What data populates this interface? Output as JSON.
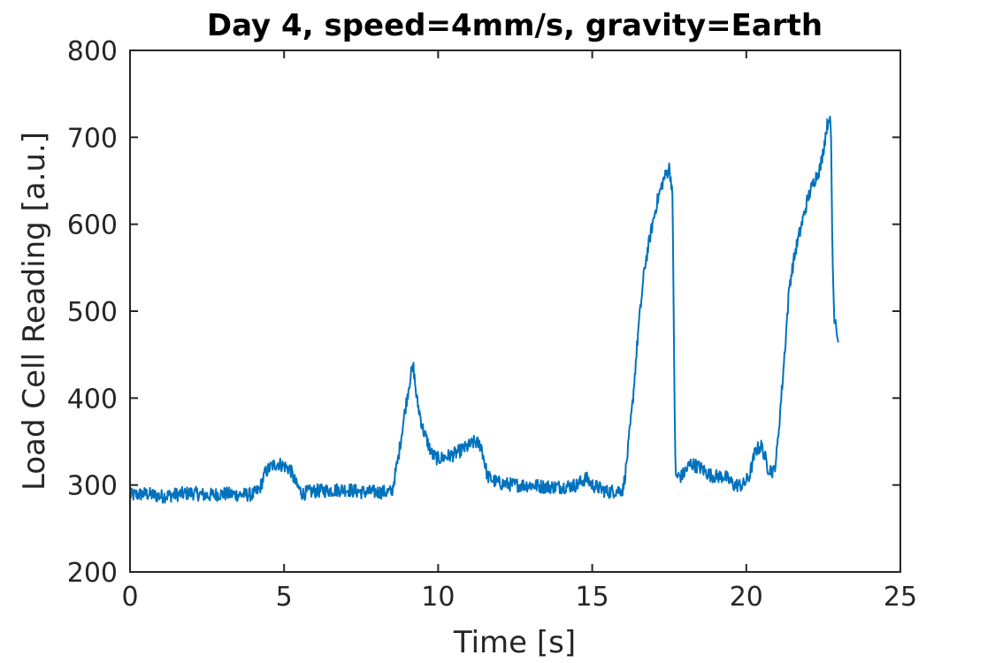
{
  "chart_data": {
    "type": "line",
    "title": "Day 4, speed=4mm/s, gravity=Earth",
    "xlabel": "Time [s]",
    "ylabel": "Load Cell Reading [a.u.]",
    "xlim": [
      0,
      25
    ],
    "ylim": [
      200,
      800
    ],
    "x_ticks": [
      0,
      5,
      10,
      15,
      20,
      25
    ],
    "y_ticks": [
      200,
      300,
      400,
      500,
      600,
      700,
      800
    ],
    "x_tick_labels": [
      "0",
      "5",
      "10",
      "15",
      "20",
      "25"
    ],
    "y_tick_labels": [
      "200",
      "300",
      "400",
      "500",
      "600",
      "700",
      "800"
    ],
    "grid": false,
    "legend": "none",
    "line_color": "#0072BD",
    "series": [
      {
        "name": "",
        "x": [
          0,
          0.5,
          1.0,
          1.5,
          2.0,
          2.5,
          3.0,
          3.5,
          4.0,
          4.2,
          4.4,
          4.6,
          4.8,
          5.0,
          5.2,
          5.4,
          5.6,
          5.8,
          6.0,
          6.5,
          7.0,
          7.5,
          8.0,
          8.5,
          8.7,
          8.9,
          9.1,
          9.2,
          9.3,
          9.5,
          9.8,
          10.0,
          10.5,
          11.0,
          11.2,
          11.4,
          11.6,
          11.8,
          12.0,
          12.5,
          13.0,
          13.5,
          14.0,
          14.5,
          14.8,
          15.0,
          15.5,
          16.0,
          16.1,
          16.3,
          16.5,
          16.7,
          16.9,
          17.1,
          17.3,
          17.5,
          17.6,
          17.7,
          17.9,
          18.2,
          18.5,
          18.8,
          19.0,
          19.3,
          19.6,
          19.9,
          20.1,
          20.3,
          20.5,
          20.7,
          20.9,
          21.0,
          21.2,
          21.4,
          21.6,
          21.8,
          22.0,
          22.2,
          22.4,
          22.5,
          22.6,
          22.7,
          22.75,
          22.8,
          22.85,
          22.9,
          23.0
        ],
        "y": [
          288,
          290,
          287,
          289,
          291,
          288,
          290,
          289,
          289,
          295,
          315,
          322,
          325,
          322,
          318,
          300,
          290,
          292,
          293,
          294,
          295,
          292,
          292,
          292,
          330,
          380,
          425,
          435,
          400,
          365,
          335,
          330,
          335,
          345,
          350,
          345,
          310,
          305,
          302,
          300,
          300,
          298,
          298,
          300,
          308,
          300,
          292,
          295,
          320,
          390,
          480,
          550,
          590,
          625,
          650,
          665,
          640,
          310,
          310,
          325,
          320,
          312,
          310,
          310,
          300,
          300,
          310,
          340,
          345,
          320,
          315,
          340,
          430,
          530,
          570,
          600,
          630,
          650,
          665,
          685,
          710,
          725,
          700,
          560,
          495,
          490,
          460
        ]
      }
    ]
  }
}
